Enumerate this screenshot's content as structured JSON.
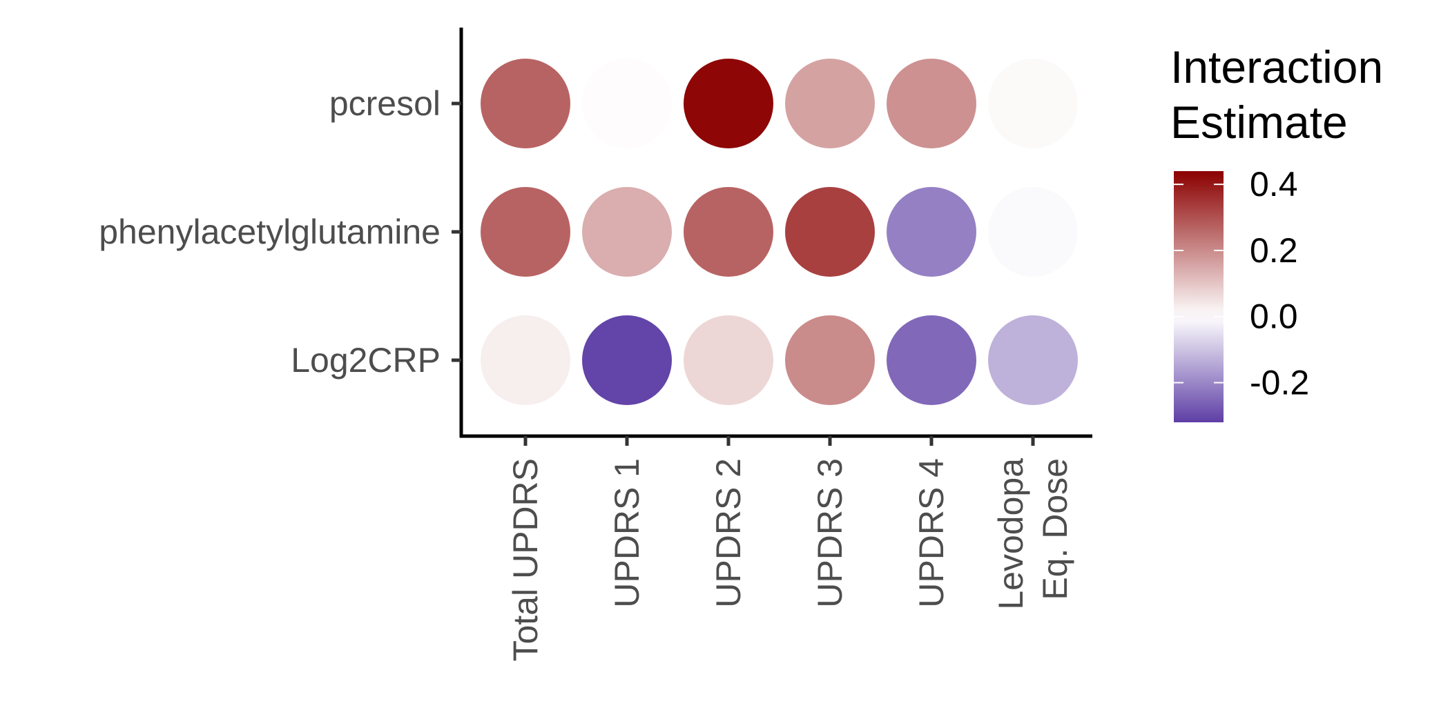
{
  "chart_data": {
    "type": "heatmap",
    "x_categories": [
      [
        "Total UPDRS"
      ],
      [
        "UPDRS 1"
      ],
      [
        "UPDRS 2"
      ],
      [
        "UPDRS 3"
      ],
      [
        "UPDRS 4"
      ],
      [
        "Levodopa",
        "Eq. Dose"
      ]
    ],
    "y_categories": [
      "pcresol",
      "phenylacetylglutamine",
      "Log2CRP"
    ],
    "values": [
      [
        0.27,
        0.005,
        0.43,
        0.16,
        0.19,
        0.01
      ],
      [
        0.27,
        0.14,
        0.27,
        0.33,
        -0.21,
        -0.01
      ],
      [
        0.03,
        -0.31,
        0.07,
        0.2,
        -0.25,
        -0.13
      ]
    ],
    "legend": {
      "title_lines": [
        "Interaction",
        "Estimate"
      ],
      "ticks": [
        0.4,
        0.2,
        0.0,
        -0.2
      ],
      "tick_labels": [
        "0.4",
        "0.2",
        "0.0",
        "-0.2"
      ],
      "range": [
        -0.32,
        0.44
      ],
      "placement": "right"
    },
    "color_scale": {
      "low": "#5e3ea5",
      "mid": "#ffffff",
      "high": "#8b0000",
      "midpoint": 0
    },
    "title": "",
    "xlabel": "",
    "ylabel": ""
  }
}
